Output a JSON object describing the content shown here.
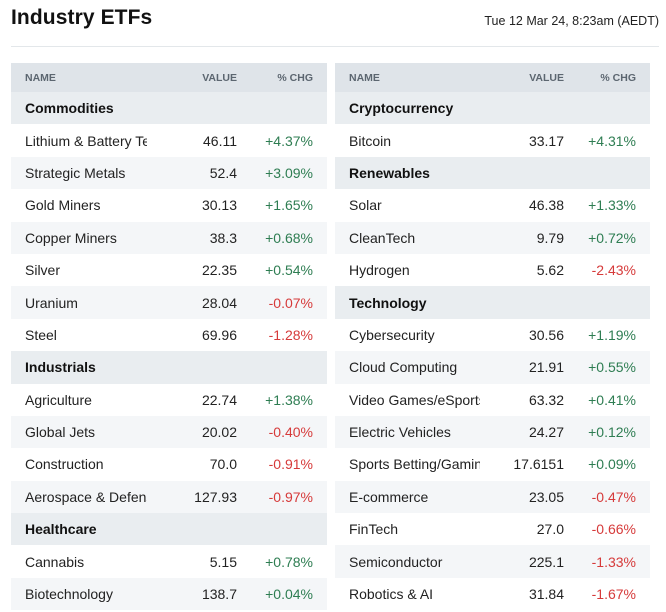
{
  "header": {
    "title": "Industry ETFs",
    "timestamp": "Tue 12 Mar 24, 8:23am (AEDT)"
  },
  "columns": {
    "name": "NAME",
    "value": "VALUE",
    "change": "% CHG"
  },
  "colors": {
    "positive": "#2e7d52",
    "negative": "#d63a3a",
    "header_bg": "#dfe4e9",
    "alt_row": "#f4f6f8"
  },
  "left_table": [
    {
      "type": "category",
      "name": "Commodities"
    },
    {
      "type": "item",
      "name": "Lithium & Battery Tech",
      "value": "46.11",
      "change": "+4.37%",
      "dir": "pos"
    },
    {
      "type": "item",
      "name": "Strategic Metals",
      "value": "52.4",
      "change": "+3.09%",
      "dir": "pos"
    },
    {
      "type": "item",
      "name": "Gold Miners",
      "value": "30.13",
      "change": "+1.65%",
      "dir": "pos"
    },
    {
      "type": "item",
      "name": "Copper Miners",
      "value": "38.3",
      "change": "+0.68%",
      "dir": "pos"
    },
    {
      "type": "item",
      "name": "Silver",
      "value": "22.35",
      "change": "+0.54%",
      "dir": "pos"
    },
    {
      "type": "item",
      "name": "Uranium",
      "value": "28.04",
      "change": "-0.07%",
      "dir": "neg"
    },
    {
      "type": "item",
      "name": "Steel",
      "value": "69.96",
      "change": "-1.28%",
      "dir": "neg"
    },
    {
      "type": "category",
      "name": "Industrials"
    },
    {
      "type": "item",
      "name": "Agriculture",
      "value": "22.74",
      "change": "+1.38%",
      "dir": "pos"
    },
    {
      "type": "item",
      "name": "Global Jets",
      "value": "20.02",
      "change": "-0.40%",
      "dir": "neg"
    },
    {
      "type": "item",
      "name": "Construction",
      "value": "70.0",
      "change": "-0.91%",
      "dir": "neg"
    },
    {
      "type": "item",
      "name": "Aerospace & Defense",
      "value": "127.93",
      "change": "-0.97%",
      "dir": "neg"
    },
    {
      "type": "category",
      "name": "Healthcare"
    },
    {
      "type": "item",
      "name": "Cannabis",
      "value": "5.15",
      "change": "+0.78%",
      "dir": "pos"
    },
    {
      "type": "item",
      "name": "Biotechnology",
      "value": "138.7",
      "change": "+0.04%",
      "dir": "pos"
    }
  ],
  "right_table": [
    {
      "type": "category",
      "name": "Cryptocurrency"
    },
    {
      "type": "item",
      "name": "Bitcoin",
      "value": "33.17",
      "change": "+4.31%",
      "dir": "pos"
    },
    {
      "type": "category",
      "name": "Renewables"
    },
    {
      "type": "item",
      "name": "Solar",
      "value": "46.38",
      "change": "+1.33%",
      "dir": "pos"
    },
    {
      "type": "item",
      "name": "CleanTech",
      "value": "9.79",
      "change": "+0.72%",
      "dir": "pos"
    },
    {
      "type": "item",
      "name": "Hydrogen",
      "value": "5.62",
      "change": "-2.43%",
      "dir": "neg"
    },
    {
      "type": "category",
      "name": "Technology"
    },
    {
      "type": "item",
      "name": "Cybersecurity",
      "value": "30.56",
      "change": "+1.19%",
      "dir": "pos"
    },
    {
      "type": "item",
      "name": "Cloud Computing",
      "value": "21.91",
      "change": "+0.55%",
      "dir": "pos"
    },
    {
      "type": "item",
      "name": "Video Games/eSports",
      "value": "63.32",
      "change": "+0.41%",
      "dir": "pos"
    },
    {
      "type": "item",
      "name": "Electric Vehicles",
      "value": "24.27",
      "change": "+0.12%",
      "dir": "pos"
    },
    {
      "type": "item",
      "name": "Sports Betting/Gaming",
      "value": "17.6151",
      "change": "+0.09%",
      "dir": "pos"
    },
    {
      "type": "item",
      "name": "E-commerce",
      "value": "23.05",
      "change": "-0.47%",
      "dir": "neg"
    },
    {
      "type": "item",
      "name": "FinTech",
      "value": "27.0",
      "change": "-0.66%",
      "dir": "neg"
    },
    {
      "type": "item",
      "name": "Semiconductor",
      "value": "225.1",
      "change": "-1.33%",
      "dir": "neg"
    },
    {
      "type": "item",
      "name": "Robotics & AI",
      "value": "31.84",
      "change": "-1.67%",
      "dir": "neg"
    }
  ]
}
